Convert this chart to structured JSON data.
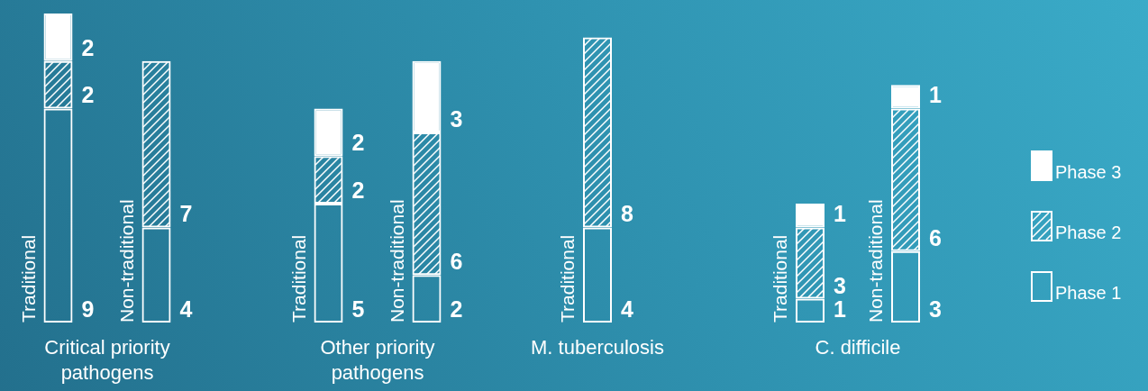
{
  "chart_data": [
    {
      "type": "bar",
      "stacked": true,
      "xlabel": "Critical priority pathogens",
      "categories": [
        "Traditional",
        "Non-traditional"
      ],
      "tick_labels": "x",
      "data_labels": true,
      "series": [
        {
          "color": "#ffffff",
          "values": [
            9,
            4
          ]
        },
        {
          "color": "#ffffff",
          "values": [
            2,
            7
          ]
        },
        {
          "color": "#ffffff",
          "values": [
            2,
            null
          ]
        }
      ]
    },
    {
      "type": "bar",
      "stacked": true,
      "xlabel": "Other priority pathogens",
      "categories": [
        "Traditional",
        "Non-traditional"
      ],
      "tick_labels": "x",
      "data_labels": true,
      "series": [
        {
          "color": "#ffffff",
          "values": [
            5,
            2
          ]
        },
        {
          "color": "#ffffff",
          "values": [
            2,
            6
          ]
        },
        {
          "color": "#ffffff",
          "values": [
            2,
            3
          ]
        }
      ]
    },
    {
      "type": "bar",
      "stacked": true,
      "xlabel": "M. tuberculosis",
      "categories": [
        "Traditional"
      ],
      "tick_labels": "x",
      "data_labels": true,
      "series": [
        {
          "color": "#ffffff",
          "values": [
            4
          ]
        },
        {
          "color": "#ffffff",
          "values": [
            8
          ]
        },
        {
          "color": "#ffffff",
          "values": [
            null
          ]
        }
      ]
    },
    {
      "type": "bar",
      "stacked": true,
      "xlabel": "C. difficile",
      "categories": [
        "Traditional",
        "Non-traditional"
      ],
      "tick_labels": "x",
      "data_labels": true,
      "legend": "right",
      "series": [
        {
          "name": "Phase 1",
          "color": "#ffffff",
          "values": [
            1,
            3
          ]
        },
        {
          "name": "Phase 2",
          "color": "#ffffff",
          "values": [
            3,
            6
          ]
        },
        {
          "name": "Phase 3",
          "color": "#ffffff",
          "values": [
            1,
            1
          ]
        }
      ]
    }
  ]
}
